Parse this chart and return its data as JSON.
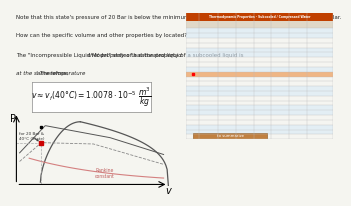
{
  "bg_color": "#f5f5f0",
  "text_lines": [
    "Note that this state's pressure of 20 Bar is below the minimum pressure found in the subcooled water table of 25 Bar.",
    "How can the specific volume and other properties by located?",
    "The \"Incompressible Liquid Model\" states that the property of a subcooled liquid is that property of a saturated liquid",
    "at the same temperature! Therefore,"
  ],
  "left_label": "P",
  "bottom_label": "v",
  "annotation_label": "for 20 Bar &\n40°C (State)",
  "pink_label": "Rankine\nconstant",
  "table_highlight_color": "#f4a460",
  "bg_table": "#f0f0f0"
}
